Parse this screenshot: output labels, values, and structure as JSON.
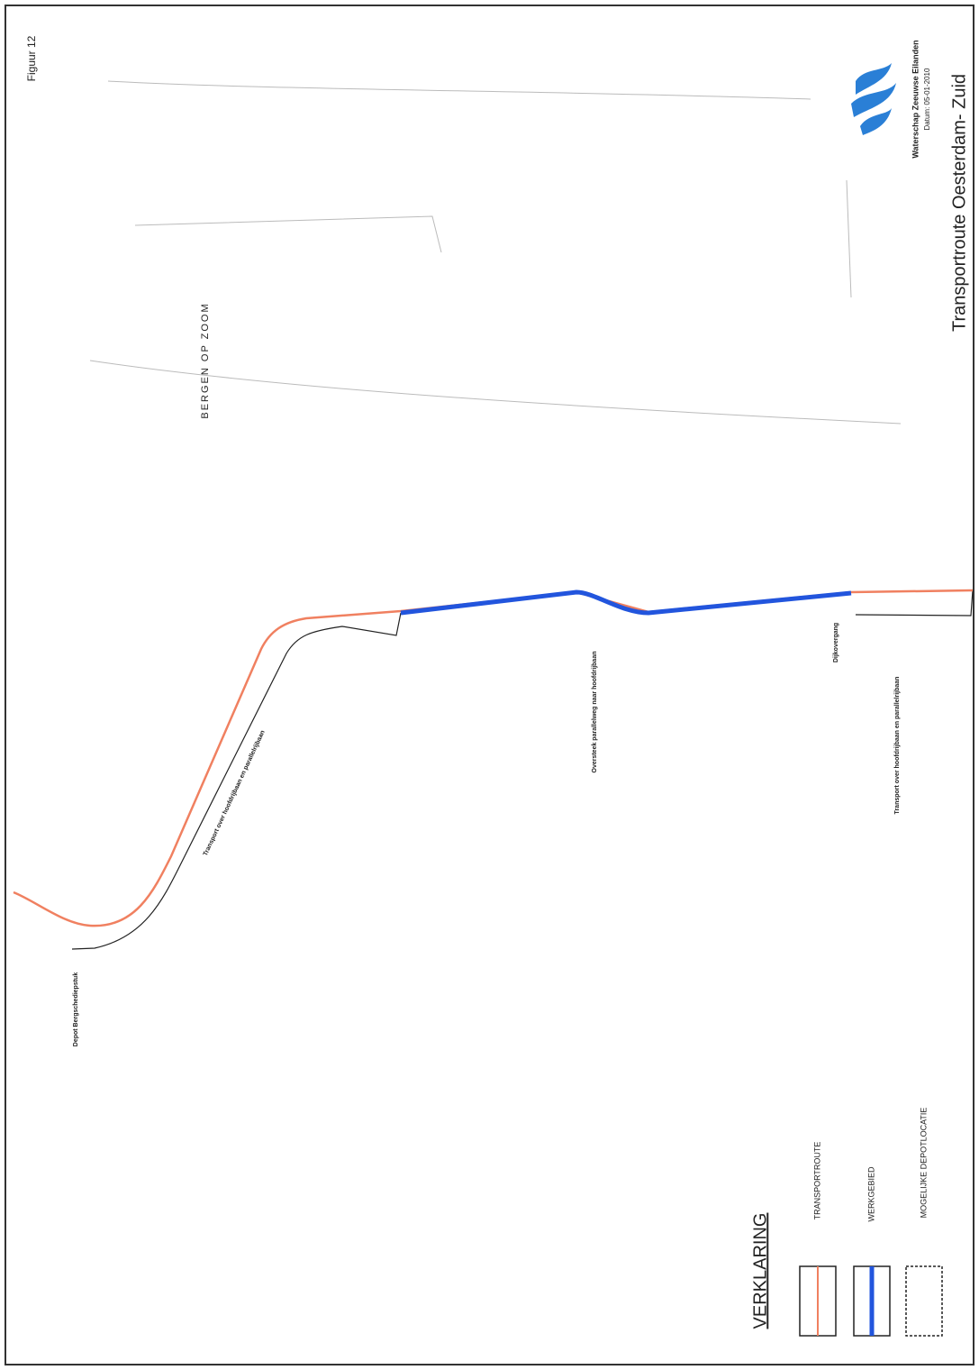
{
  "header": {
    "figure": "Figuur 12",
    "organization": "Waterschap Zeeuwse Eilanden",
    "date": "Datum: 05-01-2010",
    "title": "Transportroute Oesterdam- Zuid"
  },
  "map": {
    "place": "BERGEN OP ZOOM",
    "labels": [
      "Depot Bergschediepstuk",
      "Transport over hoofdrijbaan en parallelrijbaan",
      "Oversteek parallelweg naar hoofdrijbaan",
      "Dijkovergang",
      "Transport over hoofdrijbaan en parallelrijbaan"
    ]
  },
  "legend": {
    "title": "VERKLARING",
    "items": [
      "TRANSPORTROUTE",
      "WERKGEBIED",
      "MOGELIJKE DEPOTLOCATIE"
    ]
  }
}
